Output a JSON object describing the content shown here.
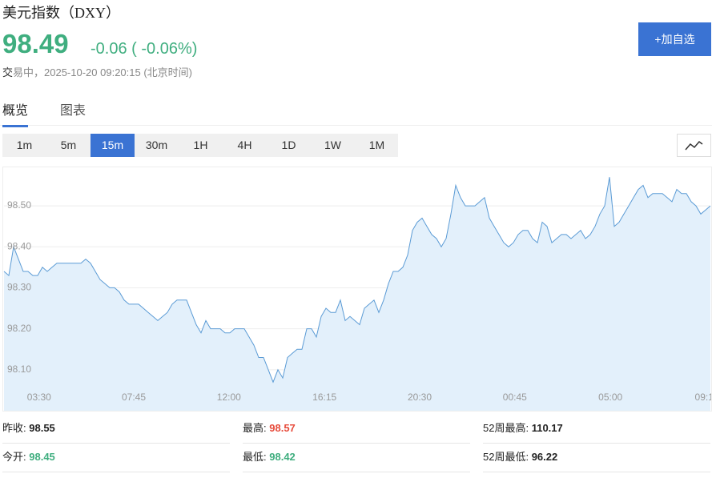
{
  "header": {
    "title": "美元指数（DXY）",
    "price": "98.49",
    "change": "-0.06 ( -0.06%)",
    "status": "交易中，2025-10-20 09:20:15 (北京时间)",
    "button": "+加自选"
  },
  "tabs": [
    "概览",
    "图表"
  ],
  "intervals": [
    "1m",
    "5m",
    "15m",
    "30m",
    "1H",
    "4H",
    "1D",
    "1W",
    "1M"
  ],
  "chart_data": {
    "type": "area",
    "color": "#5b9bd5",
    "fill": "#e3f0fb",
    "values": [
      98.34,
      98.33,
      98.4,
      98.37,
      98.34,
      98.34,
      98.33,
      98.33,
      98.35,
      98.34,
      98.35,
      98.36,
      98.36,
      98.36,
      98.36,
      98.36,
      98.36,
      98.37,
      98.36,
      98.34,
      98.32,
      98.31,
      98.3,
      98.3,
      98.29,
      98.27,
      98.26,
      98.26,
      98.26,
      98.25,
      98.24,
      98.23,
      98.22,
      98.23,
      98.24,
      98.26,
      98.27,
      98.27,
      98.27,
      98.24,
      98.21,
      98.19,
      98.22,
      98.2,
      98.2,
      98.2,
      98.19,
      98.19,
      98.2,
      98.2,
      98.2,
      98.18,
      98.16,
      98.13,
      98.13,
      98.1,
      98.07,
      98.1,
      98.08,
      98.13,
      98.14,
      98.15,
      98.15,
      98.2,
      98.2,
      98.18,
      98.23,
      98.25,
      98.24,
      98.24,
      98.27,
      98.22,
      98.23,
      98.22,
      98.21,
      98.25,
      98.26,
      98.27,
      98.24,
      98.27,
      98.31,
      98.34,
      98.34,
      98.35,
      98.38,
      98.44,
      98.46,
      98.47,
      98.45,
      98.43,
      98.42,
      98.4,
      98.42,
      98.48,
      98.55,
      98.52,
      98.5,
      98.5,
      98.5,
      98.51,
      98.52,
      98.47,
      98.45,
      98.43,
      98.41,
      98.4,
      98.41,
      98.43,
      98.44,
      98.44,
      98.42,
      98.41,
      98.46,
      98.45,
      98.41,
      98.42,
      98.43,
      98.43,
      98.42,
      98.43,
      98.44,
      98.42,
      98.43,
      98.45,
      98.48,
      98.5,
      98.57,
      98.45,
      98.46,
      98.48,
      98.5,
      98.52,
      98.54,
      98.55,
      98.52,
      98.53,
      98.53,
      98.53,
      98.52,
      98.51,
      98.54,
      98.53,
      98.53,
      98.51,
      98.5,
      98.48,
      98.49,
      98.5
    ],
    "xlim": [
      0,
      147
    ],
    "xticks": [
      {
        "value": 7.3,
        "label": "03:30"
      },
      {
        "value": 27,
        "label": "07:45"
      },
      {
        "value": 46.8,
        "label": "12:00"
      },
      {
        "value": 66.7,
        "label": "16:15"
      },
      {
        "value": 86.5,
        "label": "20:30"
      },
      {
        "value": 106.3,
        "label": "00:45"
      },
      {
        "value": 126.2,
        "label": "05:00"
      },
      {
        "value": 145.7,
        "label": "09:1"
      }
    ],
    "ylim": [
      98.0,
      98.59
    ],
    "yticks": [
      {
        "value": 98.1,
        "label": "98.10"
      },
      {
        "value": 98.2,
        "label": "98.20"
      },
      {
        "value": 98.3,
        "label": "98.30"
      },
      {
        "value": 98.4,
        "label": "98.40"
      },
      {
        "value": 98.5,
        "label": "98.50"
      }
    ],
    "grid": true
  },
  "stats": [
    [
      "昨收:",
      "98.55"
    ],
    [
      "最高:",
      "98.57"
    ],
    [
      "52周最高:",
      "110.17"
    ],
    [
      "今开:",
      "98.45"
    ],
    [
      "最低:",
      "98.42"
    ],
    [
      "52周最低:",
      "96.22"
    ]
  ]
}
